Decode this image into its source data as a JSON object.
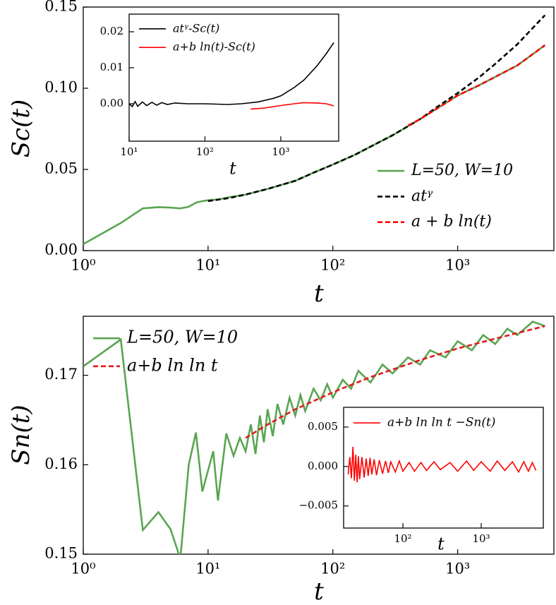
{
  "chart_data": [
    {
      "type": "line",
      "xscale": "log",
      "xlabel": "t",
      "ylabel": "Sc(t)",
      "legend": "lower right",
      "xlim": [
        1,
        5900
      ],
      "ylim": [
        0,
        0.15
      ],
      "xticks": [
        {
          "value": 1,
          "label": "10⁰"
        },
        {
          "value": 10,
          "label": "10¹"
        },
        {
          "value": 100,
          "label": "10²"
        },
        {
          "value": 1000,
          "label": "10³"
        }
      ],
      "yticks": [
        {
          "value": 0,
          "label": "0.00"
        },
        {
          "value": 0.05,
          "label": "0.05"
        },
        {
          "value": 0.1,
          "label": "0.10"
        },
        {
          "value": 0.15,
          "label": "0.15"
        }
      ],
      "series": [
        {
          "name": "L=50, W=10",
          "color": "#5aa552",
          "linestyle": "solid",
          "x": [
            1,
            2,
            3,
            4,
            5,
            6,
            7,
            8,
            9,
            10,
            12,
            15,
            20,
            30,
            50,
            70,
            100,
            150,
            200,
            300,
            500,
            700,
            1000,
            1500,
            2000,
            3000,
            5000
          ],
          "values": [
            0.004,
            0.017,
            0.026,
            0.0268,
            0.0265,
            0.026,
            0.027,
            0.0295,
            0.0305,
            0.031,
            0.0315,
            0.033,
            0.0345,
            0.038,
            0.043,
            0.048,
            0.053,
            0.059,
            0.064,
            0.071,
            0.081,
            0.088,
            0.0955,
            0.102,
            0.107,
            0.114,
            0.1265
          ]
        },
        {
          "name": "atᵞ",
          "color": "#000000",
          "linestyle": "dashed",
          "x": [
            10,
            15,
            20,
            30,
            50,
            70,
            100,
            150,
            200,
            300,
            500,
            700,
            1000,
            1500,
            2000,
            3000,
            5000
          ],
          "values": [
            0.0305,
            0.0325,
            0.0345,
            0.038,
            0.043,
            0.048,
            0.053,
            0.059,
            0.064,
            0.071,
            0.081,
            0.089,
            0.097,
            0.107,
            0.115,
            0.127,
            0.145
          ]
        },
        {
          "name": "a + b ln(t)",
          "color": "#ff0000",
          "linestyle": "dashed",
          "x": [
            400,
            500,
            700,
            1000,
            1500,
            2000,
            3000,
            5000
          ],
          "values": [
            0.077,
            0.081,
            0.088,
            0.0955,
            0.102,
            0.107,
            0.114,
            0.1265
          ]
        }
      ]
    },
    {
      "type": "line",
      "xscale": "log",
      "xlabel": "t",
      "legend": "upper left",
      "xlim": [
        10,
        5800
      ],
      "ylim": [
        -0.0104,
        0.0249
      ],
      "xticks": [
        {
          "value": 10,
          "label": "10¹"
        },
        {
          "value": 100,
          "label": "10²"
        },
        {
          "value": 1000,
          "label": "10³"
        }
      ],
      "yticks": [
        {
          "value": 0,
          "label": "0.00"
        },
        {
          "value": 0.01,
          "label": "0.01"
        },
        {
          "value": 0.02,
          "label": "0.02"
        }
      ],
      "series": [
        {
          "name": "atᵞ-Sc(t)",
          "color": "#000000",
          "linestyle": "solid",
          "x": [
            10,
            11,
            12,
            13,
            15,
            17,
            20,
            23,
            27,
            32,
            40,
            60,
            100,
            200,
            300,
            500,
            800,
            1000,
            1500,
            2000,
            3000,
            4000,
            5000
          ],
          "values": [
            0,
            -0.0008,
            0.0006,
            -0.0007,
            0.0005,
            -0.0005,
            0.0004,
            -0.0004,
            0.0003,
            -0.0002,
            0.0002,
            0,
            0,
            -0.0002,
            0,
            0.0005,
            0.0015,
            0.0022,
            0.0045,
            0.0065,
            0.0105,
            0.014,
            0.017
          ]
        },
        {
          "name": "a+b ln(t)-Sc(t)",
          "color": "#ff0000",
          "linestyle": "solid",
          "x": [
            400,
            600,
            1000,
            1500,
            2000,
            3000,
            4000,
            5000
          ],
          "values": [
            -0.0015,
            -0.0012,
            -0.0005,
            0,
            0.0003,
            0.0002,
            0,
            -0.0006
          ]
        }
      ]
    },
    {
      "type": "line",
      "xscale": "log",
      "xlabel": "t",
      "ylabel": "Sn(t)",
      "legend": "upper left",
      "xlim": [
        1,
        5900
      ],
      "ylim": [
        0.15,
        0.1766
      ],
      "xticks": [
        {
          "value": 1,
          "label": "10⁰"
        },
        {
          "value": 10,
          "label": "10¹"
        },
        {
          "value": 100,
          "label": "10²"
        },
        {
          "value": 1000,
          "label": "10³"
        }
      ],
      "yticks": [
        0.15,
        0.16,
        0.17
      ],
      "series": [
        {
          "name": "L=50, W=10",
          "color": "#5aa552",
          "linestyle": "solid",
          "x": [
            1,
            2,
            3,
            4,
            5,
            6,
            7,
            8,
            9,
            11,
            12,
            14,
            16,
            18,
            20,
            22,
            24,
            26,
            28,
            30,
            33,
            36,
            40,
            45,
            50,
            55,
            60,
            70,
            80,
            90,
            100,
            120,
            140,
            160,
            200,
            250,
            300,
            400,
            500,
            600,
            800,
            1000,
            1300,
            1600,
            2000,
            2500,
            3000,
            4000,
            5000
          ],
          "values": [
            0.171,
            0.174,
            0.1527,
            0.1547,
            0.1528,
            0.1495,
            0.16,
            0.1636,
            0.157,
            0.1615,
            0.156,
            0.1635,
            0.161,
            0.163,
            0.1615,
            0.1645,
            0.1612,
            0.1655,
            0.1625,
            0.1662,
            0.1632,
            0.1668,
            0.1645,
            0.1675,
            0.1655,
            0.1678,
            0.166,
            0.1685,
            0.1672,
            0.169,
            0.1675,
            0.1695,
            0.1685,
            0.1705,
            0.1692,
            0.1712,
            0.1702,
            0.172,
            0.1712,
            0.1728,
            0.172,
            0.1738,
            0.1728,
            0.1745,
            0.1735,
            0.1752,
            0.1745,
            0.176,
            0.1755
          ]
        },
        {
          "name": "a+b ln ln t",
          "color": "#e41a1c",
          "linestyle": "dashed",
          "x": [
            20,
            30,
            50,
            100,
            200,
            500,
            1000,
            2000,
            5000
          ],
          "values": [
            0.163,
            0.1645,
            0.1662,
            0.1681,
            0.1698,
            0.1717,
            0.173,
            0.1741,
            0.1755
          ]
        }
      ]
    },
    {
      "type": "line",
      "xscale": "log",
      "xlabel": "t",
      "legend": "upper left",
      "xlim": [
        17.5,
        6200
      ],
      "ylim": [
        -0.0078,
        0.0075
      ],
      "xticks": [
        {
          "value": 100,
          "label": "10²"
        },
        {
          "value": 1000,
          "label": "10³"
        }
      ],
      "yticks": [
        {
          "value": -0.005,
          "label": "−0.005"
        },
        {
          "value": 0,
          "label": "0.000"
        },
        {
          "value": 0.005,
          "label": "0.005"
        }
      ],
      "series": [
        {
          "name": "a+b ln ln t −Sn(t)",
          "color": "#ff0000",
          "linestyle": "solid",
          "x": [
            20,
            21,
            22,
            23,
            24,
            25,
            26,
            27,
            28,
            30,
            32,
            34,
            36,
            38,
            40,
            43,
            46,
            50,
            55,
            60,
            65,
            70,
            80,
            90,
            100,
            120,
            140,
            170,
            200,
            250,
            300,
            400,
            500,
            650,
            800,
            1000,
            1300,
            1600,
            2000,
            2500,
            3000,
            3500,
            4000,
            4500,
            5000
          ],
          "values": [
            -0.001,
            0.0012,
            -0.0015,
            0.0025,
            -0.0018,
            0.0015,
            -0.002,
            0.0013,
            -0.0016,
            0.0012,
            -0.0014,
            0.001,
            -0.0012,
            0.0011,
            -0.001,
            0.0009,
            -0.0011,
            0.0008,
            -0.0009,
            0.0007,
            -0.0008,
            0.0006,
            -0.0007,
            0.0007,
            -0.0006,
            0.0005,
            -0.0006,
            0.0005,
            -0.0005,
            0.0006,
            -0.0004,
            0.0005,
            -0.0006,
            0.0007,
            -0.0005,
            0.0006,
            -0.0006,
            0.0007,
            -0.0005,
            0.0006,
            -0.0007,
            0.0006,
            -0.0006,
            0.0005,
            -0.0005
          ]
        }
      ]
    }
  ]
}
